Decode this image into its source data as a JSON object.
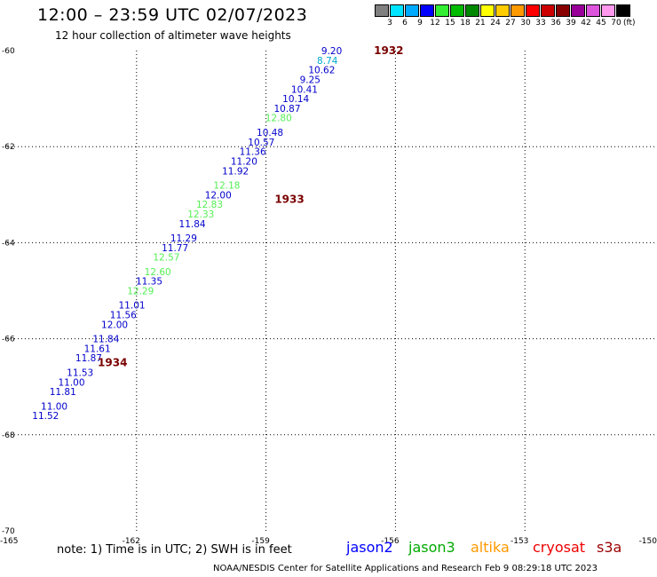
{
  "header": {
    "title": "12:00 – 23:59 UTC 02/07/2023",
    "subtitle": "12 hour collection of altimeter wave heights"
  },
  "colorbar": {
    "colors": [
      "#808080",
      "#00e5ff",
      "#00aaff",
      "#0000ff",
      "#33ee33",
      "#00bb00",
      "#008800",
      "#ffff00",
      "#ffcc00",
      "#ff9900",
      "#ff0000",
      "#cc0000",
      "#880000",
      "#990099",
      "#dd55dd",
      "#ff99ee",
      "#000000"
    ],
    "labels": [
      "3",
      "6",
      "9",
      "12",
      "15",
      "18",
      "21",
      "24",
      "27",
      "30",
      "33",
      "36",
      "39",
      "42",
      "45",
      "70"
    ],
    "unit": "(ft)"
  },
  "map": {
    "lon_range": [
      -165,
      -150
    ],
    "lat_range": [
      -70,
      -60
    ],
    "lon_ticks": [
      "-165",
      "-162",
      "-159",
      "-156",
      "-153",
      "-150"
    ],
    "lat_ticks": [
      "-60",
      "-62",
      "-64",
      "-66",
      "-68",
      "-70"
    ],
    "passes": [
      {
        "label": "1932",
        "lon": -156.5,
        "lat": -60.0
      },
      {
        "label": "1933",
        "lon": -158.8,
        "lat": -63.1
      },
      {
        "label": "1934",
        "lon": -162.9,
        "lat": -66.5
      }
    ],
    "readings": [
      {
        "value": "9.20",
        "lon": -157.8,
        "lat": -60.0,
        "color": "#0000cc"
      },
      {
        "value": "8.74",
        "lon": -157.9,
        "lat": -60.2,
        "color": "#00aacc"
      },
      {
        "value": "10.62",
        "lon": -158.1,
        "lat": -60.4,
        "color": "#0000cc"
      },
      {
        "value": "9.25",
        "lon": -158.3,
        "lat": -60.6,
        "color": "#0000cc"
      },
      {
        "value": "10.41",
        "lon": -158.5,
        "lat": -60.8,
        "color": "#0000cc"
      },
      {
        "value": "10.14",
        "lon": -158.7,
        "lat": -61.0,
        "color": "#0000cc"
      },
      {
        "value": "10.87",
        "lon": -158.9,
        "lat": -61.2,
        "color": "#0000cc"
      },
      {
        "value": "12.80",
        "lon": -159.1,
        "lat": -61.4,
        "color": "#55ee55"
      },
      {
        "value": "10.48",
        "lon": -159.3,
        "lat": -61.7,
        "color": "#0000cc"
      },
      {
        "value": "10.57",
        "lon": -159.5,
        "lat": -61.9,
        "color": "#0000cc"
      },
      {
        "value": "11.36",
        "lon": -159.7,
        "lat": -62.1,
        "color": "#0000cc"
      },
      {
        "value": "11.20",
        "lon": -159.9,
        "lat": -62.3,
        "color": "#0000cc"
      },
      {
        "value": "11.92",
        "lon": -160.1,
        "lat": -62.5,
        "color": "#0000cc"
      },
      {
        "value": "12.18",
        "lon": -160.3,
        "lat": -62.8,
        "color": "#55ee55"
      },
      {
        "value": "12.00",
        "lon": -160.5,
        "lat": -63.0,
        "color": "#0000cc"
      },
      {
        "value": "12.83",
        "lon": -160.7,
        "lat": -63.2,
        "color": "#55ee55"
      },
      {
        "value": "12.33",
        "lon": -160.9,
        "lat": -63.4,
        "color": "#55ee55"
      },
      {
        "value": "11.84",
        "lon": -161.1,
        "lat": -63.6,
        "color": "#0000cc"
      },
      {
        "value": "11.29",
        "lon": -161.3,
        "lat": -63.9,
        "color": "#0000cc"
      },
      {
        "value": "11.77",
        "lon": -161.5,
        "lat": -64.1,
        "color": "#0000cc"
      },
      {
        "value": "12.57",
        "lon": -161.7,
        "lat": -64.3,
        "color": "#55ee55"
      },
      {
        "value": "12.60",
        "lon": -161.9,
        "lat": -64.6,
        "color": "#55ee55"
      },
      {
        "value": "11.35",
        "lon": -162.1,
        "lat": -64.8,
        "color": "#0000cc"
      },
      {
        "value": "12.29",
        "lon": -162.3,
        "lat": -65.0,
        "color": "#55ee55"
      },
      {
        "value": "11.01",
        "lon": -162.5,
        "lat": -65.3,
        "color": "#0000cc"
      },
      {
        "value": "11.56",
        "lon": -162.7,
        "lat": -65.5,
        "color": "#0000cc"
      },
      {
        "value": "12.00",
        "lon": -162.9,
        "lat": -65.7,
        "color": "#0000cc"
      },
      {
        "value": "11.84",
        "lon": -163.1,
        "lat": -66.0,
        "color": "#0000cc"
      },
      {
        "value": "11.61",
        "lon": -163.3,
        "lat": -66.2,
        "color": "#0000cc"
      },
      {
        "value": "11.87",
        "lon": -163.5,
        "lat": -66.4,
        "color": "#0000cc"
      },
      {
        "value": "11.53",
        "lon": -163.7,
        "lat": -66.7,
        "color": "#0000cc"
      },
      {
        "value": "11.00",
        "lon": -163.9,
        "lat": -66.9,
        "color": "#0000cc"
      },
      {
        "value": "11.81",
        "lon": -164.1,
        "lat": -67.1,
        "color": "#0000cc"
      },
      {
        "value": "11.00",
        "lon": -164.3,
        "lat": -67.4,
        "color": "#0000cc"
      },
      {
        "value": "11.52",
        "lon": -164.5,
        "lat": -67.6,
        "color": "#0000cc"
      }
    ]
  },
  "note": "note:  1) Time is in UTC;  2) SWH is in feet",
  "satellites": [
    {
      "name": "jason2",
      "color": "#0000ff"
    },
    {
      "name": "jason3",
      "color": "#00aa00"
    },
    {
      "name": "altika",
      "color": "#ff9900"
    },
    {
      "name": "cryosat",
      "color": "#ee0000"
    },
    {
      "name": "s3a",
      "color": "#990000"
    }
  ],
  "footer": "NOAA/NESDIS Center for Satellite Applications and Research    Feb  9 08:29:18 UTC 2023"
}
